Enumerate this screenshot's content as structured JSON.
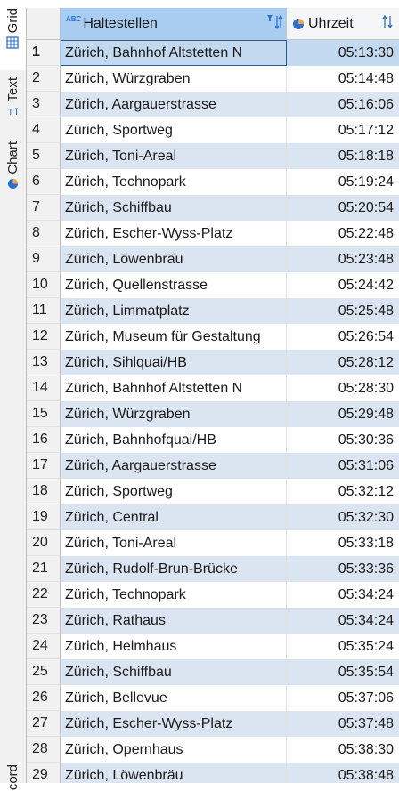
{
  "sidebar": {
    "tabs": [
      {
        "label": "Grid",
        "icon": "grid-icon",
        "active": true
      },
      {
        "label": "Text",
        "icon": "text-icon",
        "active": false
      },
      {
        "label": "Chart",
        "icon": "pie-chart-icon",
        "active": false
      },
      {
        "label": "Record",
        "icon": "record-icon",
        "active": false
      }
    ]
  },
  "grid": {
    "columns": [
      {
        "label": "Haltestellen",
        "type_badge": "ABC",
        "icon": "text-type-icon"
      },
      {
        "label": "Uhrzeit",
        "icon": "clock-type-icon"
      }
    ],
    "selected_row": 1,
    "rows": [
      {
        "num": "1",
        "stop": "Zürich, Bahnhof Altstetten N",
        "time": "05:13:30"
      },
      {
        "num": "2",
        "stop": "Zürich, Würzgraben",
        "time": "05:14:48"
      },
      {
        "num": "3",
        "stop": "Zürich, Aargauerstrasse",
        "time": "05:16:06"
      },
      {
        "num": "4",
        "stop": "Zürich, Sportweg",
        "time": "05:17:12"
      },
      {
        "num": "5",
        "stop": "Zürich, Toni-Areal",
        "time": "05:18:18"
      },
      {
        "num": "6",
        "stop": "Zürich, Technopark",
        "time": "05:19:24"
      },
      {
        "num": "7",
        "stop": "Zürich, Schiffbau",
        "time": "05:20:54"
      },
      {
        "num": "8",
        "stop": "Zürich, Escher-Wyss-Platz",
        "time": "05:22:48"
      },
      {
        "num": "9",
        "stop": "Zürich, Löwenbräu",
        "time": "05:23:48"
      },
      {
        "num": "10",
        "stop": "Zürich, Quellenstrasse",
        "time": "05:24:42"
      },
      {
        "num": "11",
        "stop": "Zürich, Limmatplatz",
        "time": "05:25:48"
      },
      {
        "num": "12",
        "stop": "Zürich, Museum für Gestaltung",
        "time": "05:26:54"
      },
      {
        "num": "13",
        "stop": "Zürich, Sihlquai/HB",
        "time": "05:28:12"
      },
      {
        "num": "14",
        "stop": "Zürich, Bahnhof Altstetten N",
        "time": "05:28:30"
      },
      {
        "num": "15",
        "stop": "Zürich, Würzgraben",
        "time": "05:29:48"
      },
      {
        "num": "16",
        "stop": "Zürich, Bahnhofquai/HB",
        "time": "05:30:36"
      },
      {
        "num": "17",
        "stop": "Zürich, Aargauerstrasse",
        "time": "05:31:06"
      },
      {
        "num": "18",
        "stop": "Zürich, Sportweg",
        "time": "05:32:12"
      },
      {
        "num": "19",
        "stop": "Zürich, Central",
        "time": "05:32:30"
      },
      {
        "num": "20",
        "stop": "Zürich, Toni-Areal",
        "time": "05:33:18"
      },
      {
        "num": "21",
        "stop": "Zürich, Rudolf-Brun-Brücke",
        "time": "05:33:36"
      },
      {
        "num": "22",
        "stop": "Zürich, Technopark",
        "time": "05:34:24"
      },
      {
        "num": "23",
        "stop": "Zürich, Rathaus",
        "time": "05:34:24"
      },
      {
        "num": "24",
        "stop": "Zürich, Helmhaus",
        "time": "05:35:24"
      },
      {
        "num": "25",
        "stop": "Zürich, Schiffbau",
        "time": "05:35:54"
      },
      {
        "num": "26",
        "stop": "Zürich, Bellevue",
        "time": "05:37:06"
      },
      {
        "num": "27",
        "stop": "Zürich, Escher-Wyss-Platz",
        "time": "05:37:48"
      },
      {
        "num": "28",
        "stop": "Zürich, Opernhaus",
        "time": "05:38:30"
      },
      {
        "num": "29",
        "stop": "Zürich, Löwenbräu",
        "time": "05:38:48"
      }
    ]
  },
  "colors": {
    "header_selected": "#a9cdf1",
    "row_alt": "#dbe5f1",
    "row_selected": "#c3d9f0",
    "accent": "#2a6fd6"
  }
}
